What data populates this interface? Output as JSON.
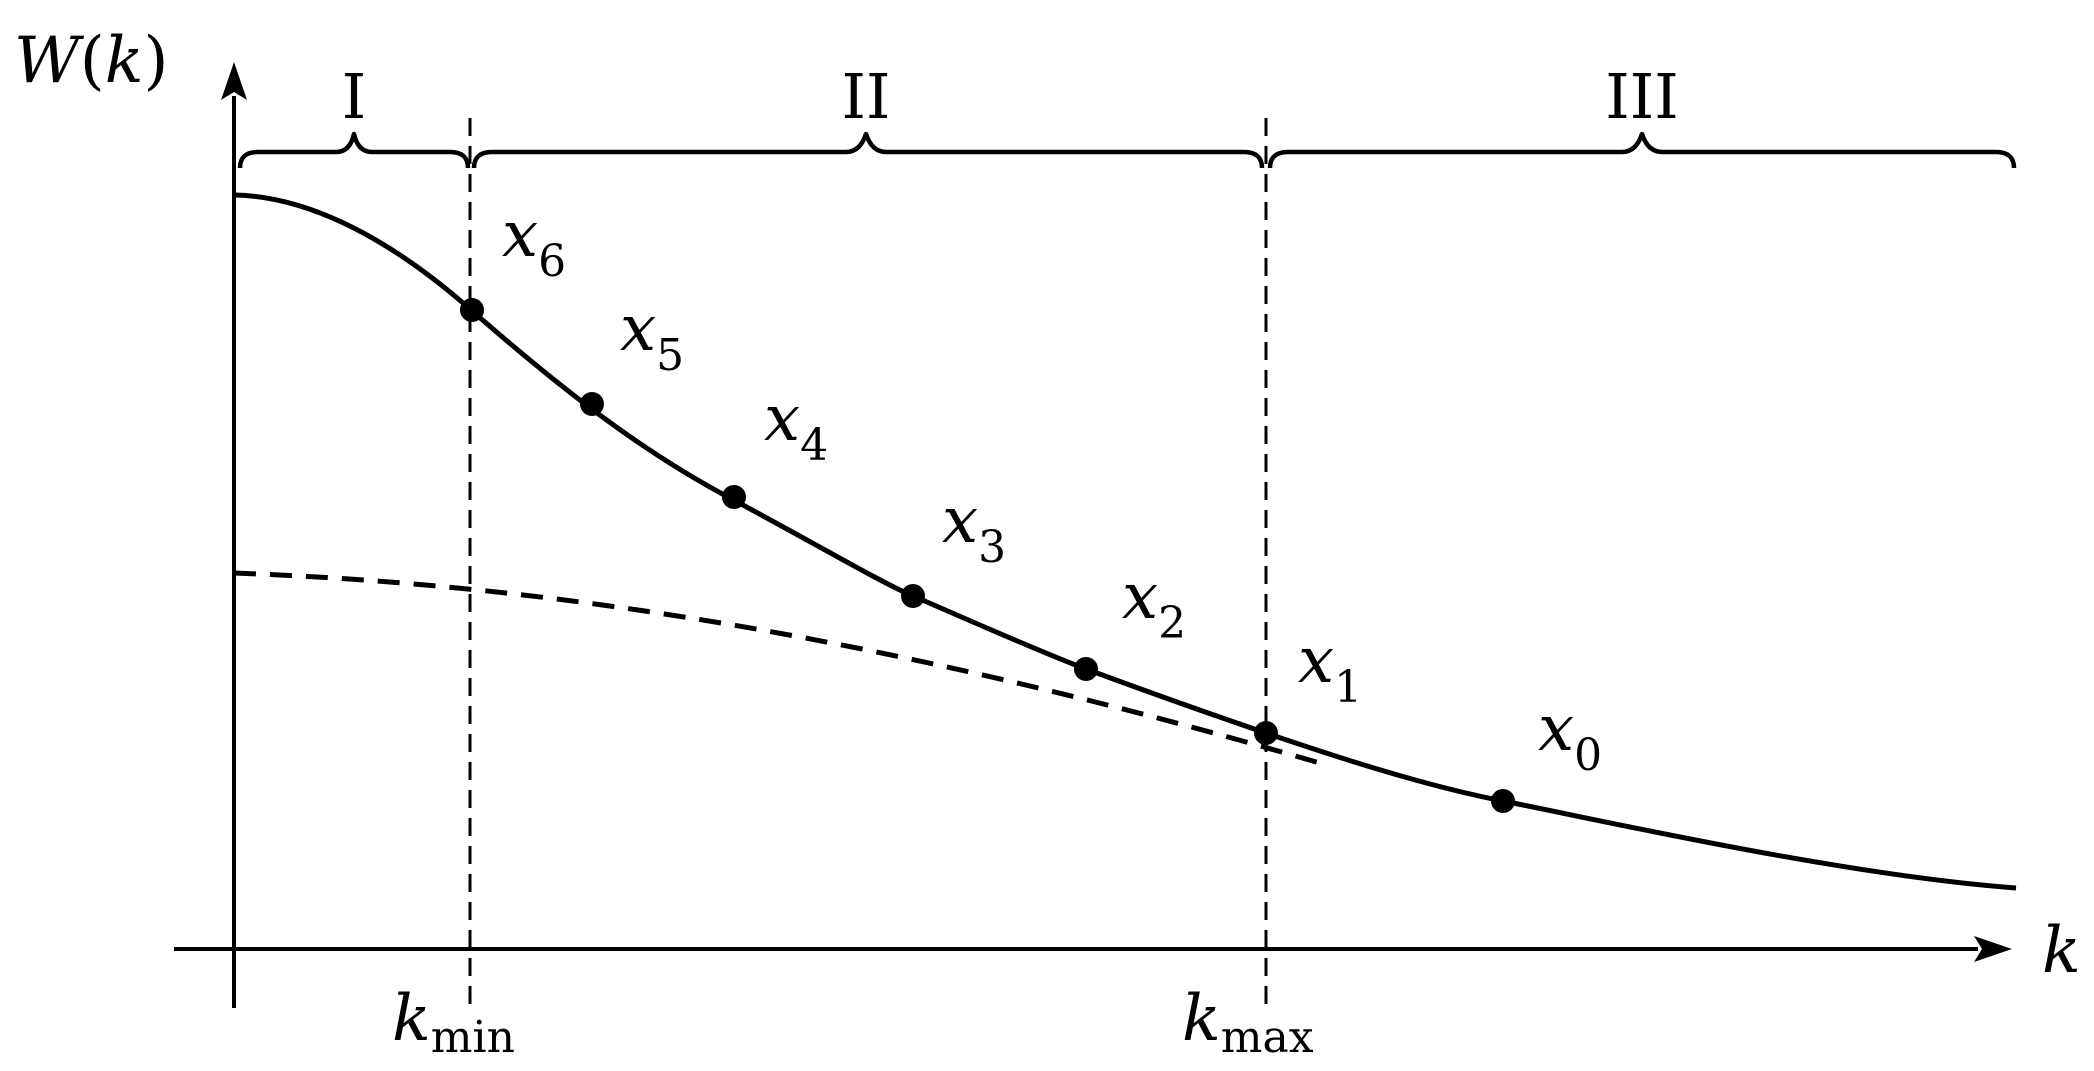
{
  "y_axis_label": {
    "main": "W",
    "paren_open": "(",
    "arg": "k",
    "paren_close": ")"
  },
  "x_axis_label": "k",
  "regions": [
    {
      "numeral": "I"
    },
    {
      "numeral": "II"
    },
    {
      "numeral": "III"
    }
  ],
  "markers": [
    {
      "base": "k",
      "sub": "min"
    },
    {
      "base": "k",
      "sub": "max"
    }
  ],
  "points": [
    {
      "base": "x",
      "sub": "0"
    },
    {
      "base": "x",
      "sub": "1"
    },
    {
      "base": "x",
      "sub": "2"
    },
    {
      "base": "x",
      "sub": "3"
    },
    {
      "base": "x",
      "sub": "4"
    },
    {
      "base": "x",
      "sub": "5"
    },
    {
      "base": "x",
      "sub": "6"
    }
  ],
  "curves": [
    {
      "id": "W",
      "style": "solid"
    },
    {
      "id": "asymptote",
      "style": "dashed"
    }
  ]
}
